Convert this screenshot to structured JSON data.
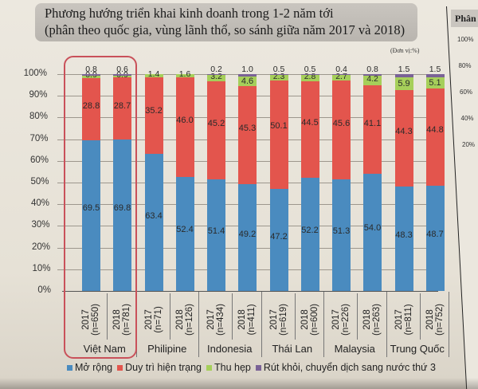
{
  "header": {
    "title_line1": "Phương hướng triển khai kinh doanh trong 1-2 năm tới",
    "title_line2": "(phân theo quốc gia, vùng lãnh thổ, so sánh giữa năm 2017 và 2018)",
    "unit": "(Đơn vị:%)"
  },
  "side_panel": {
    "title": "Phân",
    "ticks": [
      "100%",
      "80%",
      "60%",
      "40%",
      "20%"
    ]
  },
  "colors": {
    "mo_rong": "#4a8bbf",
    "duy_tri": "#e3554d",
    "thu_hep": "#a6cf5a",
    "rut_khoi": "#7a6296",
    "highlight": "#c9515a"
  },
  "legend": [
    {
      "label": "Mở rộng",
      "color": "#4a8bbf"
    },
    {
      "label": "Duy trì hiện trạng",
      "color": "#e3554d"
    },
    {
      "label": "Thu hẹp",
      "color": "#a6cf5a"
    },
    {
      "label": "Rút khỏi, chuyển dịch sang nước thứ 3",
      "color": "#7a6296"
    }
  ],
  "yaxis": [
    "0%",
    "10%",
    "20%",
    "30%",
    "40%",
    "50%",
    "60%",
    "70%",
    "80%",
    "90%",
    "100%"
  ],
  "chart_data": {
    "type": "bar",
    "stacked": true,
    "title": "Phương hướng triển khai kinh doanh trong 1-2 năm tới (phân theo quốc gia, vùng lãnh thổ, so sánh giữa năm 2017 và 2018)",
    "unit": "%",
    "xlabel": "",
    "ylabel": "",
    "ylim": [
      0,
      100
    ],
    "yticks": [
      0,
      10,
      20,
      30,
      40,
      50,
      60,
      70,
      80,
      90,
      100
    ],
    "grid": true,
    "legend_position": "bottom",
    "groups": [
      {
        "country": "Việt Nam",
        "highlighted": true,
        "bars": [
          {
            "year": "2017",
            "n": "(n=650)",
            "values": {
              "mo_rong": 69.5,
              "duy_tri": 28.8,
              "thu_hep": 0.9,
              "rut_khoi": 0.8
            }
          },
          {
            "year": "2018",
            "n": "(n=781)",
            "values": {
              "mo_rong": 69.8,
              "duy_tri": 28.7,
              "thu_hep": 0.9,
              "rut_khoi": 0.6
            }
          }
        ]
      },
      {
        "country": "Philipine",
        "bars": [
          {
            "year": "2017",
            "n": "(n=71)",
            "values": {
              "mo_rong": 63.4,
              "duy_tri": 35.2,
              "thu_hep": 1.4,
              "rut_khoi": 0
            }
          },
          {
            "year": "2018",
            "n": "(n=126)",
            "values": {
              "mo_rong": 52.4,
              "duy_tri": 46.0,
              "thu_hep": 1.6,
              "rut_khoi": 0
            }
          }
        ]
      },
      {
        "country": "Indonesia",
        "bars": [
          {
            "year": "2017",
            "n": "(n=434)",
            "values": {
              "mo_rong": 51.4,
              "duy_tri": 45.2,
              "thu_hep": 3.2,
              "rut_khoi": 0.2
            }
          },
          {
            "year": "2018",
            "n": "(n=411)",
            "values": {
              "mo_rong": 49.2,
              "duy_tri": 45.3,
              "thu_hep": 4.6,
              "rut_khoi": 1.0
            }
          }
        ]
      },
      {
        "country": "Thái Lan",
        "bars": [
          {
            "year": "2017",
            "n": "(n=619)",
            "values": {
              "mo_rong": 47.2,
              "duy_tri": 50.1,
              "thu_hep": 2.3,
              "rut_khoi": 0.5
            }
          },
          {
            "year": "2018",
            "n": "(n=600)",
            "values": {
              "mo_rong": 52.2,
              "duy_tri": 44.5,
              "thu_hep": 2.8,
              "rut_khoi": 0.5
            }
          }
        ]
      },
      {
        "country": "Malaysia",
        "bars": [
          {
            "year": "2017",
            "n": "(n=226)",
            "values": {
              "mo_rong": 51.3,
              "duy_tri": 45.6,
              "thu_hep": 2.7,
              "rut_khoi": 0.4
            }
          },
          {
            "year": "2018",
            "n": "(n=263)",
            "values": {
              "mo_rong": 54.0,
              "duy_tri": 41.1,
              "thu_hep": 4.2,
              "rut_khoi": 0.8
            }
          }
        ]
      },
      {
        "country": "Trung Quốc",
        "bars": [
          {
            "year": "2017",
            "n": "(n=811)",
            "values": {
              "mo_rong": 48.3,
              "duy_tri": 44.3,
              "thu_hep": 5.9,
              "rut_khoi": 1.5
            }
          },
          {
            "year": "2018",
            "n": "(n=752)",
            "values": {
              "mo_rong": 48.7,
              "duy_tri": 44.8,
              "thu_hep": 5.1,
              "rut_khoi": 1.5
            }
          }
        ]
      }
    ],
    "categories": [
      "Việt Nam 2017",
      "Việt Nam 2018",
      "Philipine 2017",
      "Philipine 2018",
      "Indonesia 2017",
      "Indonesia 2018",
      "Thái Lan 2017",
      "Thái Lan 2018",
      "Malaysia 2017",
      "Malaysia 2018",
      "Trung Quốc 2017",
      "Trung Quốc 2018"
    ],
    "series": [
      {
        "name": "Mở rộng",
        "values": [
          69.5,
          69.8,
          63.4,
          52.4,
          51.4,
          49.2,
          47.2,
          52.2,
          51.3,
          54.0,
          48.3,
          48.7
        ]
      },
      {
        "name": "Duy trì hiện trạng",
        "values": [
          28.8,
          28.7,
          35.2,
          46.0,
          45.2,
          45.3,
          50.1,
          44.5,
          45.6,
          41.1,
          44.3,
          44.8
        ]
      },
      {
        "name": "Thu hẹp",
        "values": [
          0.9,
          0.9,
          1.4,
          1.6,
          3.2,
          4.6,
          2.3,
          2.8,
          2.7,
          4.2,
          5.9,
          5.1
        ]
      },
      {
        "name": "Rút khỏi, chuyển dịch sang nước thứ 3",
        "values": [
          0.8,
          0.6,
          0,
          0,
          0.2,
          1.0,
          0.5,
          0.5,
          0.4,
          0.8,
          1.5,
          1.5
        ]
      }
    ]
  }
}
